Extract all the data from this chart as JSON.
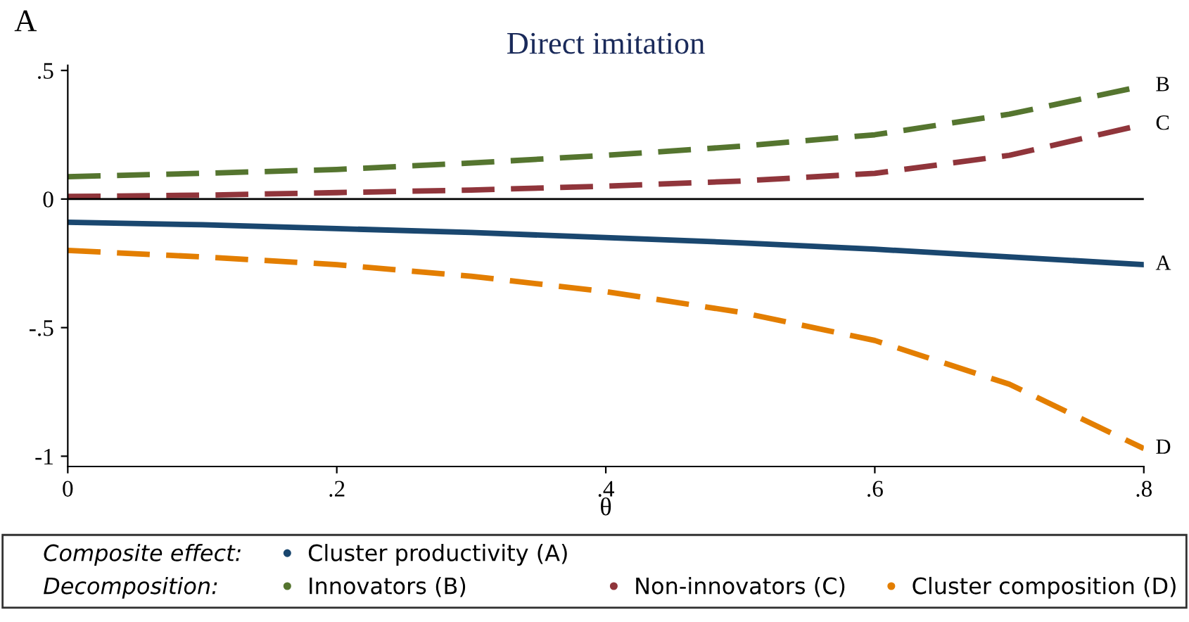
{
  "chart_data": {
    "type": "line",
    "title": "Direct imitation",
    "subtitle": "A",
    "xlabel": "θ",
    "x": [
      0,
      0.1,
      0.2,
      0.3,
      0.4,
      0.5,
      0.6,
      0.7,
      0.8
    ],
    "series": [
      {
        "name": "Cluster productivity (A)",
        "color": "#1a476f",
        "line_style": "solid",
        "values": [
          -0.09,
          -0.1,
          -0.115,
          -0.13,
          -0.15,
          -0.17,
          -0.195,
          -0.225,
          -0.255
        ]
      },
      {
        "name": "Innovators (B)",
        "color": "#55752f",
        "line_style": "dashed",
        "values": [
          0.087,
          0.1,
          0.115,
          0.14,
          0.17,
          0.205,
          0.25,
          0.33,
          0.44
        ]
      },
      {
        "name": "Non-innovators (C)",
        "color": "#90353b",
        "line_style": "dashed",
        "values": [
          0.01,
          0.015,
          0.025,
          0.035,
          0.05,
          0.07,
          0.1,
          0.17,
          0.29
        ]
      },
      {
        "name": "Cluster composition (D)",
        "color": "#e37e00",
        "line_style": "dashed",
        "values": [
          -0.2,
          -0.225,
          -0.255,
          -0.3,
          -0.36,
          -0.44,
          -0.55,
          -0.72,
          -0.97
        ]
      }
    ],
    "xlim": [
      0,
      0.8
    ],
    "xticks": [
      0,
      {
        "value": 0.2,
        "label": ".2"
      },
      {
        "value": 0.4,
        "label": ".4"
      },
      {
        "value": 0.6,
        "label": ".6"
      },
      {
        "value": 0.8,
        "label": ".8"
      }
    ],
    "ylim": [
      -1.04,
      0.52
    ],
    "yticks": [
      {
        "value": -1,
        "label": "-1"
      },
      {
        "value": -0.5,
        "label": "-.5"
      },
      0,
      {
        "value": 0.5,
        "label": ".5"
      }
    ],
    "ref_lines": [
      {
        "axis": "y",
        "value": 0,
        "color": "#000000"
      }
    ],
    "annotations": [
      "Composite effect:",
      "Decomposition:",
      "A",
      "B",
      "C",
      "D"
    ],
    "legend": "bottom",
    "grid": false
  }
}
